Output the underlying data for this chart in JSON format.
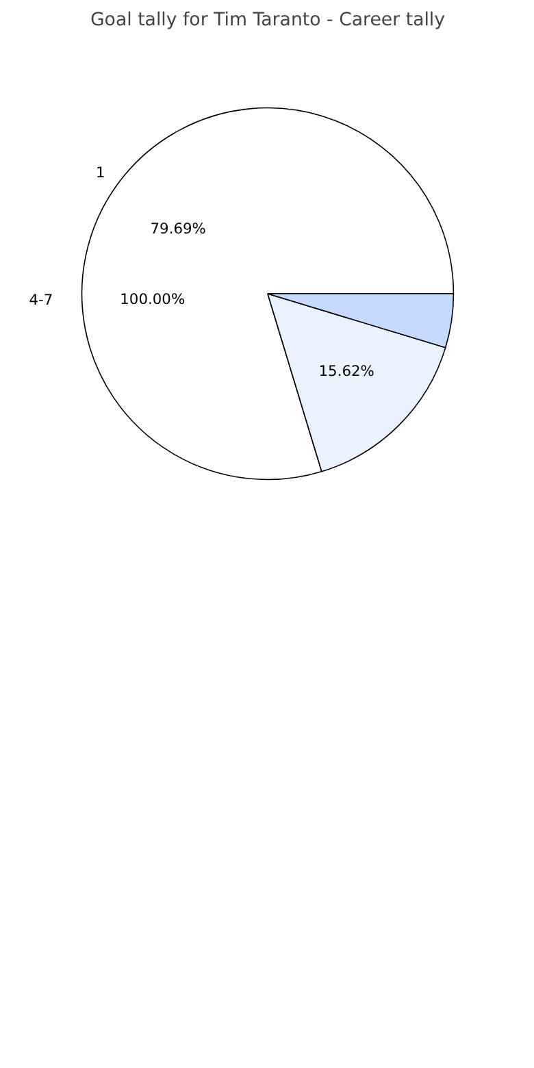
{
  "chart_data": {
    "type": "pie",
    "title": "Goal tally for Tim Taranto - Career tally",
    "categories": [
      "1",
      null,
      null
    ],
    "values": [
      79.69,
      15.62,
      4.69
    ],
    "colors": [
      "#ffffff",
      "#eaf1ff",
      "#c6d9ff"
    ],
    "value_labels": [
      "79.69%",
      "15.62%",
      null
    ],
    "annotations": [
      "4-7",
      "100.00%"
    ]
  }
}
